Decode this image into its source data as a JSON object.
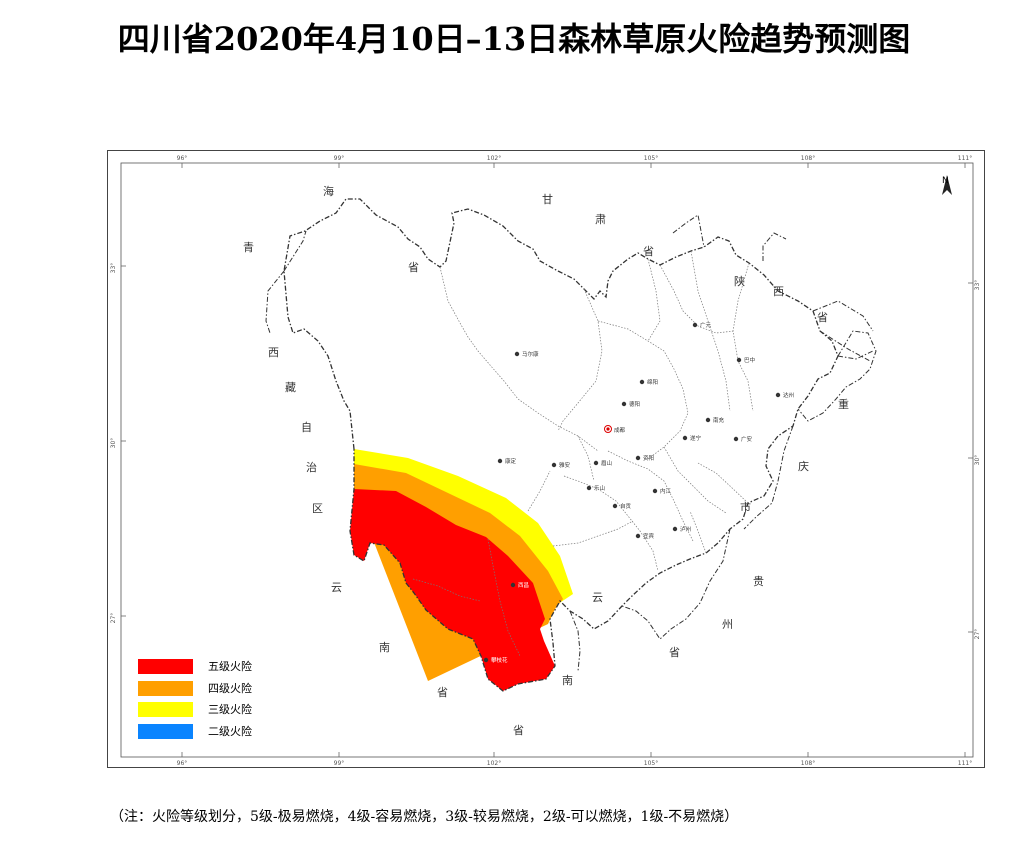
{
  "title": "四川省2020年4月10日–13日森林草原火险趋势预测图",
  "note": "（注：火险等级划分，5级-极易燃烧，4级-容易燃烧，3级-较易燃烧，2级-可以燃烧，1级-不易燃烧）",
  "legend": [
    {
      "label": "五级火险",
      "color": "#ff0000"
    },
    {
      "label": "四级火险",
      "color": "#ff9f00"
    },
    {
      "label": "三级火险",
      "color": "#ffff00"
    },
    {
      "label": "二级火险",
      "color": "#0a84ff"
    }
  ],
  "north_label": "N",
  "axis_labels": {
    "top": [
      "96°",
      "99°",
      "102°",
      "105°",
      "108°",
      "111°"
    ],
    "bottom": [
      "96°",
      "99°",
      "102°",
      "105°",
      "108°",
      "111°"
    ],
    "left": [
      "33°",
      "30°",
      "27°"
    ],
    "right": [
      "33°",
      "30°",
      "27°"
    ]
  },
  "neighbor_labels": [
    "海",
    "青",
    "省",
    "西",
    "藏",
    "自",
    "治",
    "区",
    "甘",
    "肃",
    "省",
    "陕",
    "西",
    "省",
    "重",
    "庆",
    "市",
    "云",
    "南",
    "省",
    "贵",
    "州",
    "省",
    "云",
    "南",
    "省"
  ],
  "cities": [
    "马尔康",
    "成都",
    "绵阳",
    "德阳",
    "广元",
    "巴中",
    "达州",
    "南充",
    "广安",
    "遂宁",
    "雅安",
    "眉山",
    "资阳",
    "乐山",
    "内江",
    "自贡",
    "泸州",
    "宜宾",
    "康定",
    "西昌",
    "攀枝花"
  ]
}
